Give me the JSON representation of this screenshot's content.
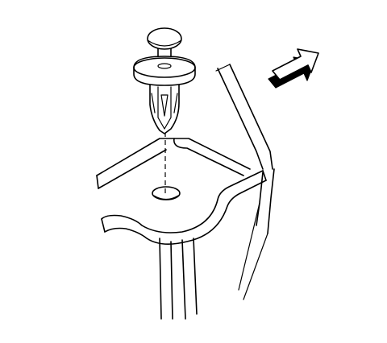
{
  "diagram": {
    "type": "technical-illustration",
    "subject": "push-pin-retainer-installation",
    "components": {
      "retainer": "push-pin-retainer-icon",
      "panel": "bracket-panel",
      "hole": "mounting-hole",
      "direction": "arrow-icon"
    },
    "colors": {
      "stroke": "#000000",
      "background": "#ffffff",
      "arrow_shadow": "#000000"
    }
  }
}
